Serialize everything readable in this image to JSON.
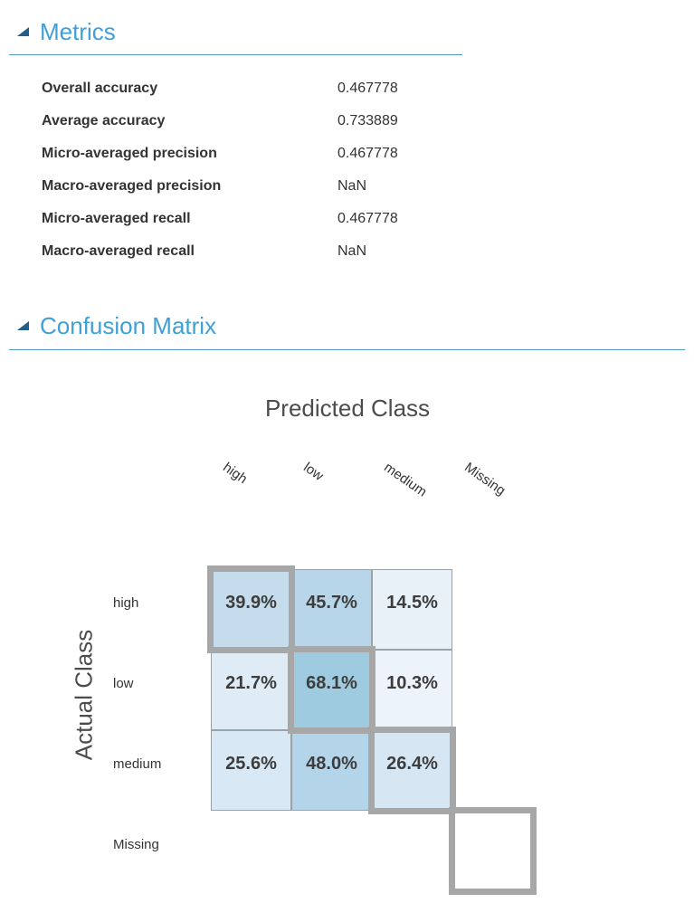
{
  "metrics_section": {
    "title": "Metrics",
    "rows": [
      {
        "label": "Overall accuracy",
        "value": "0.467778"
      },
      {
        "label": "Average accuracy",
        "value": "0.733889"
      },
      {
        "label": "Micro-averaged precision",
        "value": "0.467778"
      },
      {
        "label": "Macro-averaged precision",
        "value": "NaN"
      },
      {
        "label": "Micro-averaged recall",
        "value": "0.467778"
      },
      {
        "label": "Macro-averaged recall",
        "value": "NaN"
      }
    ]
  },
  "confusion_matrix_section": {
    "title": "Confusion Matrix"
  },
  "chart_data": {
    "type": "heatmap",
    "x_axis_title": "Predicted Class",
    "y_axis_title": "Actual Class",
    "columns": [
      "high",
      "low",
      "medium",
      "Missing"
    ],
    "rows": [
      "high",
      "low",
      "medium",
      "Missing"
    ],
    "values_percent": [
      [
        39.9,
        45.7,
        14.5,
        null
      ],
      [
        21.7,
        68.1,
        10.3,
        null
      ],
      [
        25.6,
        48.0,
        26.4,
        null
      ],
      [
        null,
        null,
        null,
        null
      ]
    ],
    "cells": [
      [
        {
          "label": "39.9%",
          "color": "#c5dcec",
          "diagonal": true
        },
        {
          "label": "45.7%",
          "color": "#b7d6ea",
          "diagonal": false
        },
        {
          "label": "14.5%",
          "color": "#e8f1f8",
          "diagonal": false
        },
        null
      ],
      [
        {
          "label": "21.7%",
          "color": "#dfecf6",
          "diagonal": false
        },
        {
          "label": "68.1%",
          "color": "#9fcbe0",
          "diagonal": true
        },
        {
          "label": "10.3%",
          "color": "#ecf3fa",
          "diagonal": false
        },
        null
      ],
      [
        {
          "label": "25.6%",
          "color": "#d8e8f4",
          "diagonal": false
        },
        {
          "label": "48.0%",
          "color": "#b4d4e9",
          "diagonal": false
        },
        {
          "label": "26.4%",
          "color": "#d6e7f3",
          "diagonal": true
        },
        null
      ],
      [
        null,
        null,
        null,
        {
          "label": "",
          "color": "#ffffff",
          "diagonal": true
        }
      ]
    ],
    "grid": false,
    "legend_position": "none",
    "colors": {
      "cell_border": "#9aa1a8",
      "cell_text": "#3d3d3d",
      "diagonal_border": "#a7a7a7"
    }
  },
  "theme": {
    "header_text": "#3fa0d8",
    "header_triangle": "#235e86",
    "divider": "#4e9dc9",
    "body_text": "#333333",
    "axis_title_text": "#4c4c4c"
  }
}
